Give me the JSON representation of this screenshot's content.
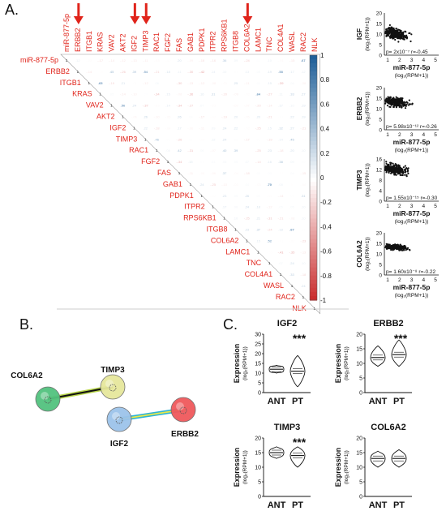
{
  "panels": {
    "a": "A.",
    "b": "B.",
    "c": "C."
  },
  "colors": {
    "red": "#e0241b",
    "blue": "#1f5f98",
    "arrow": "#e0241b",
    "network_green": "#53c27f",
    "network_yellow": "#e6e79c",
    "network_blue": "#9cc3ea",
    "network_red": "#f0595c"
  },
  "heatmap": {
    "genes": [
      "miR-877-5p",
      "ERBB2",
      "ITGB1",
      "KRAS",
      "VAV2",
      "AKT2",
      "IGF2",
      "TIMP3",
      "RAC1",
      "FGF2",
      "FAS",
      "GAB1",
      "PDPK1",
      "ITPR2",
      "RPS6KB1",
      "ITGB8",
      "COL6A2",
      "LAMC1",
      "TNC",
      "COL4A1",
      "WASL",
      "RAC2",
      "NLK"
    ],
    "arrow_genes": [
      "ERBB2",
      "IGF2",
      "TIMP3",
      "COL6A2"
    ],
    "diagonal_label": "1",
    "colorbar_ticks": [
      "1",
      "0.8",
      "0.6",
      "0.4",
      "0.2",
      "0",
      "-0.2",
      "-0.4",
      "-0.6",
      "-0.8",
      "-1"
    ],
    "matrix_seed": 17
  },
  "scatters": [
    {
      "ylabel": "IGF",
      "ylabel_unit": "(log₂(RPM+1))",
      "yticks": [
        "0",
        "5",
        "10",
        "15",
        "20"
      ],
      "xlabel": "miR-877-5p",
      "xlabel_unit": "(log₂(RPM+1))",
      "xticks": [
        "1",
        "2",
        "3",
        "4",
        "5"
      ],
      "stats": "p= 2x10⁻⁷ r=-0.45",
      "center": 10,
      "spread": 2.2,
      "slope": -1.2,
      "points": 260
    },
    {
      "ylabel": "ERBB2",
      "ylabel_unit": "(log₂(RPM+1))",
      "yticks": [
        "0",
        "5",
        "10",
        "15",
        "20"
      ],
      "xlabel": "miR-877-5p",
      "xlabel_unit": "(log₂(RPM+1))",
      "xticks": [
        "1",
        "2",
        "3",
        "4",
        "5"
      ],
      "stats": "p= 5.98x10⁻¹² r=-0.26",
      "center": 13,
      "spread": 1.8,
      "slope": -0.7,
      "points": 260
    },
    {
      "ylabel": "TIMP3",
      "ylabel_unit": "(log₂(RPM+1))",
      "yticks": [
        "0",
        "4",
        "8",
        "12",
        "16"
      ],
      "xlabel": "miR-877-5p",
      "xlabel_unit": "(log₂(RPM+1))",
      "xticks": [
        "1",
        "2",
        "3",
        "4",
        "5"
      ],
      "stats": "p= 1.55x10⁻¹⁵ r=-0.30",
      "center": 12,
      "spread": 1.5,
      "slope": -0.8,
      "points": 260
    },
    {
      "ylabel": "COL6A2",
      "ylabel_unit": "(log₂(RPM+1))",
      "yticks": [
        "0",
        "5",
        "10",
        "15",
        "20"
      ],
      "xlabel": "miR-877-5p",
      "xlabel_unit": "(log₂(RPM+1))",
      "xticks": [
        "1",
        "2",
        "3",
        "4",
        "5"
      ],
      "stats": "p= 1.60x10⁻⁸ r=-0.22",
      "center": 13,
      "spread": 1.0,
      "slope": -0.4,
      "points": 260
    }
  ],
  "network": {
    "nodes": [
      {
        "label": "COL6A2",
        "id": "col6a2"
      },
      {
        "label": "TIMP3",
        "id": "timp3"
      },
      {
        "label": "IGF2",
        "id": "igf2"
      },
      {
        "label": "ERBB2",
        "id": "erbb2"
      }
    ]
  },
  "violins": [
    {
      "title": "IGF2",
      "ylabel": "Expression",
      "ylabel_unit": "(log₂(RPM+1))",
      "yticks": [
        "0",
        "5",
        "10",
        "15",
        "20",
        "25",
        "30"
      ],
      "ymax": 30,
      "groups": [
        "ANT",
        "PT"
      ],
      "sig": "***",
      "ant": {
        "median": 12,
        "lo": 10,
        "hi": 14
      },
      "pt": {
        "median": 11,
        "lo": 3,
        "hi": 19
      }
    },
    {
      "title": "ERBB2",
      "ylabel": "Expression",
      "ylabel_unit": "(log₂(RPM+1))",
      "yticks": [
        "0",
        "5",
        "10",
        "15",
        "20"
      ],
      "ymax": 20,
      "groups": [
        "ANT",
        "PT"
      ],
      "sig": "***",
      "ant": {
        "median": 12,
        "lo": 9,
        "hi": 16
      },
      "pt": {
        "median": 13,
        "lo": 9,
        "hi": 18
      }
    },
    {
      "title": "TIMP3",
      "ylabel": "Expression",
      "ylabel_unit": "(log₂(RPM+1))",
      "yticks": [
        "0",
        "5",
        "10",
        "15",
        "20"
      ],
      "ymax": 20,
      "groups": [
        "ANT",
        "PT"
      ],
      "sig": "***",
      "ant": {
        "median": 15,
        "lo": 13,
        "hi": 17
      },
      "pt": {
        "median": 14,
        "lo": 10,
        "hi": 17
      }
    },
    {
      "title": "COL6A2",
      "ylabel": "Expression",
      "ylabel_unit": "(log₂(RPM+1))",
      "yticks": [
        "0",
        "5",
        "10",
        "15",
        "20"
      ],
      "ymax": 20,
      "groups": [
        "ANT",
        "PT"
      ],
      "sig": "",
      "ant": {
        "median": 13,
        "lo": 10,
        "hi": 15.5
      },
      "pt": {
        "median": 13,
        "lo": 10,
        "hi": 16
      }
    }
  ]
}
